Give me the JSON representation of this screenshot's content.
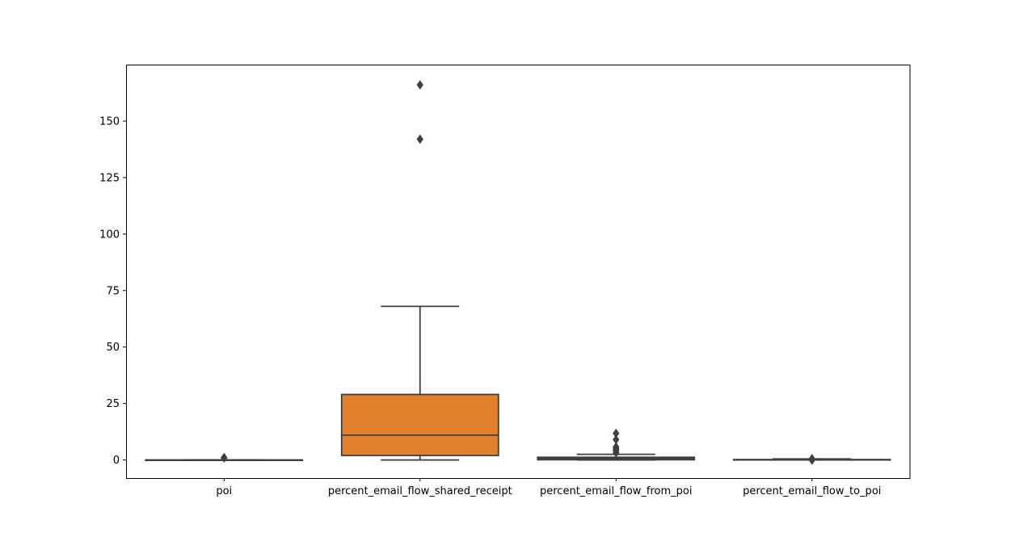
{
  "chart_data": {
    "type": "box",
    "title": "",
    "xlabel": "",
    "ylabel": "",
    "ylim": [
      -8,
      175
    ],
    "yticks": [
      0,
      25,
      50,
      75,
      100,
      125,
      150
    ],
    "categories": [
      "poi",
      "percent_email_flow_shared_receipt",
      "percent_email_flow_from_poi",
      "percent_email_flow_to_poi"
    ],
    "boxes": [
      {
        "category": "poi",
        "color": "#3274a1",
        "whisker_low": 0,
        "q1": 0,
        "median": 0,
        "q3": 0,
        "whisker_high": 0,
        "outliers": [
          1,
          1,
          1
        ]
      },
      {
        "category": "percent_email_flow_shared_receipt",
        "color": "#e1812c",
        "whisker_low": 0,
        "q1": 2,
        "median": 11,
        "q3": 29,
        "whisker_high": 68,
        "outliers": [
          142,
          166
        ]
      },
      {
        "category": "percent_email_flow_from_poi",
        "color": "#3a923a",
        "whisker_low": 0,
        "q1": 0.1,
        "median": 0.6,
        "q3": 1.2,
        "whisker_high": 2.5,
        "outliers": [
          3.2,
          4,
          4.6,
          5.2,
          5.8,
          9,
          11.8
        ]
      },
      {
        "category": "percent_email_flow_to_poi",
        "color": "#c03d3e",
        "whisker_low": 0,
        "q1": 0,
        "median": 0.1,
        "q3": 0.2,
        "whisker_high": 0.5,
        "outliers": [
          0.6,
          -0.1
        ]
      }
    ]
  }
}
